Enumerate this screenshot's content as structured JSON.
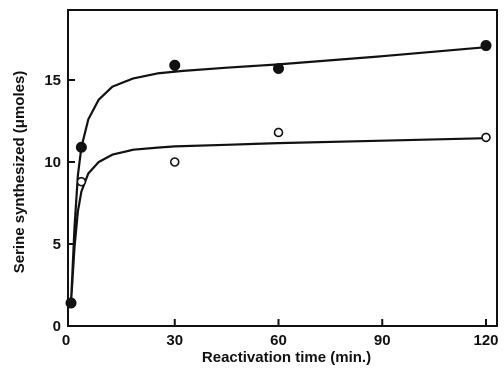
{
  "chart_data": {
    "type": "scatter",
    "xlabel": "Reactivation time (min.)",
    "ylabel": "Serine synthesized (μmoles)",
    "xlim": [
      0,
      120
    ],
    "ylim": [
      0,
      20
    ],
    "xticks": [
      0,
      30,
      60,
      90,
      120
    ],
    "yticks": [
      0,
      5,
      10,
      15
    ],
    "grid": false,
    "series": [
      {
        "marker": "filled-circle",
        "color": "#111111",
        "points": [
          {
            "x": 0,
            "y": 1.4
          },
          {
            "x": 3,
            "y": 10.9
          },
          {
            "x": 30,
            "y": 15.9
          },
          {
            "x": 60,
            "y": 15.7
          },
          {
            "x": 120,
            "y": 17.1
          }
        ],
        "curve": [
          {
            "x": 0,
            "y": 1.4
          },
          {
            "x": 1,
            "y": 6.0
          },
          {
            "x": 2,
            "y": 9.2
          },
          {
            "x": 3,
            "y": 10.9
          },
          {
            "x": 5,
            "y": 12.6
          },
          {
            "x": 8,
            "y": 13.8
          },
          {
            "x": 12,
            "y": 14.6
          },
          {
            "x": 18,
            "y": 15.1
          },
          {
            "x": 25,
            "y": 15.4
          },
          {
            "x": 32,
            "y": 15.55
          },
          {
            "x": 45,
            "y": 15.75
          },
          {
            "x": 60,
            "y": 15.95
          },
          {
            "x": 90,
            "y": 16.45
          },
          {
            "x": 120,
            "y": 17.0
          }
        ]
      },
      {
        "marker": "open-circle",
        "color": "#111111",
        "points": [
          {
            "x": 3,
            "y": 8.8
          },
          {
            "x": 30,
            "y": 10.0
          },
          {
            "x": 60,
            "y": 11.8
          },
          {
            "x": 120,
            "y": 11.5
          }
        ],
        "curve": [
          {
            "x": 0,
            "y": 1.4
          },
          {
            "x": 1,
            "y": 4.8
          },
          {
            "x": 2,
            "y": 7.0
          },
          {
            "x": 3,
            "y": 8.2
          },
          {
            "x": 5,
            "y": 9.3
          },
          {
            "x": 8,
            "y": 10.0
          },
          {
            "x": 12,
            "y": 10.45
          },
          {
            "x": 18,
            "y": 10.75
          },
          {
            "x": 25,
            "y": 10.88
          },
          {
            "x": 30,
            "y": 10.95
          },
          {
            "x": 45,
            "y": 11.05
          },
          {
            "x": 60,
            "y": 11.15
          },
          {
            "x": 90,
            "y": 11.3
          },
          {
            "x": 120,
            "y": 11.45
          }
        ]
      }
    ]
  }
}
